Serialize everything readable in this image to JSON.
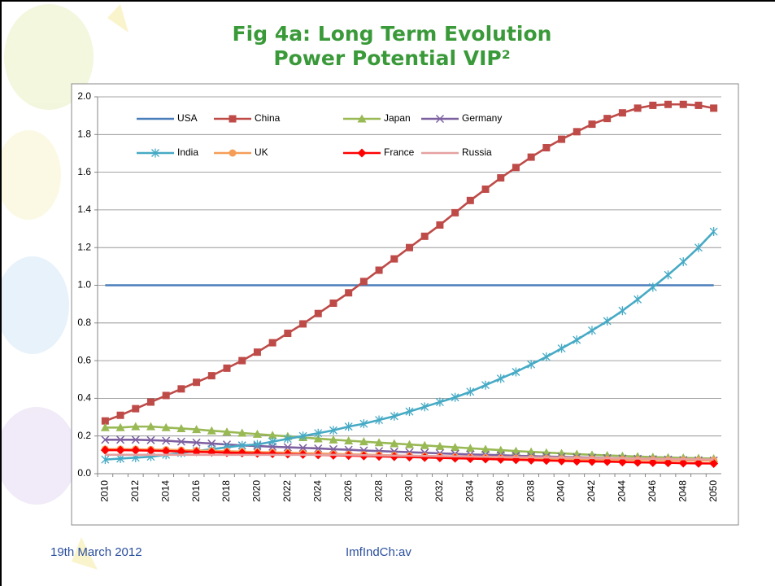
{
  "chart_data": {
    "type": "line",
    "title": [
      "Fig 4a: Long Term Evolution",
      "Power Potential VIP²"
    ],
    "categories": [
      "2010",
      null,
      "2012",
      null,
      "2014",
      null,
      "2016",
      null,
      "2018",
      null,
      "2020",
      null,
      "2022",
      null,
      "2024",
      null,
      "2026",
      null,
      "2028",
      null,
      "2030",
      null,
      "2032",
      null,
      "2034",
      null,
      "2036",
      null,
      "2038",
      null,
      "2040",
      null,
      "2042",
      null,
      "2044",
      null,
      "2046",
      null,
      "2048",
      null,
      "2050"
    ],
    "ylim": [
      0,
      2
    ],
    "yticks": [
      {
        "value": 0,
        "label": "0.0"
      },
      0.2,
      0.4,
      0.6,
      0.8,
      {
        "value": 1,
        "label": "1.0"
      },
      1.2,
      1.4,
      1.6,
      1.8,
      {
        "value": 2,
        "label": "2.0"
      }
    ],
    "grid": true,
    "legend": "top",
    "series": [
      {
        "name": "USA",
        "color": "#4a7ebb",
        "marker": "none",
        "values": [
          1,
          1,
          1,
          1,
          1,
          1,
          1,
          1,
          1,
          1,
          1,
          1,
          1,
          1,
          1,
          1,
          1,
          1,
          1,
          1,
          1,
          1,
          1,
          1,
          1,
          1,
          1,
          1,
          1,
          1,
          1,
          1,
          1,
          1,
          1,
          1,
          1,
          1,
          1,
          1,
          1
        ]
      },
      {
        "name": "China",
        "color": "#be4b48",
        "marker": "square",
        "values": [
          0.28,
          0.31,
          0.345,
          0.38,
          0.415,
          0.45,
          0.485,
          0.52,
          0.56,
          0.6,
          0.645,
          0.695,
          0.745,
          0.795,
          0.85,
          0.905,
          0.96,
          1.02,
          1.08,
          1.14,
          1.2,
          1.26,
          1.32,
          1.385,
          1.45,
          1.51,
          1.57,
          1.625,
          1.68,
          1.73,
          1.775,
          1.815,
          1.855,
          1.885,
          1.915,
          1.94,
          1.955,
          1.96,
          1.96,
          1.955,
          1.94
        ]
      },
      {
        "name": "Japan",
        "color": "#98b954",
        "marker": "triangle",
        "values": [
          0.245,
          0.245,
          0.25,
          0.25,
          0.245,
          0.24,
          0.235,
          0.228,
          0.222,
          0.216,
          0.21,
          0.204,
          0.198,
          0.192,
          0.186,
          0.18,
          0.175,
          0.17,
          0.165,
          0.16,
          0.155,
          0.15,
          0.145,
          0.14,
          0.135,
          0.13,
          0.125,
          0.12,
          0.116,
          0.112,
          0.108,
          0.104,
          0.1,
          0.097,
          0.094,
          0.091,
          0.088,
          0.086,
          0.084,
          0.082,
          0.08
        ]
      },
      {
        "name": "Germany",
        "color": "#7d60a0",
        "marker": "x",
        "values": [
          0.18,
          0.18,
          0.18,
          0.178,
          0.175,
          0.17,
          0.165,
          0.16,
          0.155,
          0.15,
          0.147,
          0.143,
          0.14,
          0.137,
          0.134,
          0.13,
          0.127,
          0.123,
          0.12,
          0.117,
          0.114,
          0.111,
          0.108,
          0.105,
          0.102,
          0.1,
          0.098,
          0.095,
          0.093,
          0.091,
          0.089,
          0.087,
          0.085,
          0.083,
          0.081,
          0.079,
          0.077,
          0.075,
          0.073,
          0.071,
          0.07
        ]
      },
      {
        "name": "India",
        "color": "#46aac5",
        "marker": "star",
        "values": [
          0.075,
          0.08,
          0.085,
          0.09,
          0.1,
          0.11,
          0.12,
          0.13,
          0.14,
          0.15,
          0.155,
          0.17,
          0.185,
          0.2,
          0.215,
          0.23,
          0.25,
          0.265,
          0.285,
          0.305,
          0.33,
          0.355,
          0.38,
          0.405,
          0.435,
          0.47,
          0.505,
          0.54,
          0.58,
          0.62,
          0.665,
          0.71,
          0.76,
          0.81,
          0.865,
          0.925,
          0.99,
          1.055,
          1.125,
          1.2,
          1.285
        ]
      },
      {
        "name": "UK",
        "color": "#f59d56",
        "marker": "circle",
        "values": [
          0.13,
          0.13,
          0.13,
          0.128,
          0.127,
          0.125,
          0.123,
          0.121,
          0.119,
          0.117,
          0.115,
          0.113,
          0.111,
          0.109,
          0.107,
          0.105,
          0.103,
          0.101,
          0.099,
          0.097,
          0.095,
          0.093,
          0.091,
          0.089,
          0.087,
          0.085,
          0.083,
          0.082,
          0.081,
          0.08,
          0.079,
          0.078,
          0.077,
          0.076,
          0.075,
          0.074,
          0.073,
          0.072,
          0.071,
          0.07,
          0.07
        ]
      },
      {
        "name": "France",
        "color": "#ff0000",
        "marker": "diamond",
        "values": [
          0.125,
          0.125,
          0.124,
          0.122,
          0.12,
          0.118,
          0.116,
          0.114,
          0.112,
          0.11,
          0.108,
          0.106,
          0.104,
          0.102,
          0.1,
          0.098,
          0.096,
          0.094,
          0.092,
          0.09,
          0.088,
          0.086,
          0.084,
          0.082,
          0.08,
          0.078,
          0.076,
          0.074,
          0.072,
          0.07,
          0.068,
          0.066,
          0.065,
          0.064,
          0.062,
          0.06,
          0.059,
          0.058,
          0.056,
          0.055,
          0.054
        ]
      },
      {
        "name": "Russia",
        "color": "#e6a0a0",
        "marker": "none",
        "values": [
          0.1,
          0.1,
          0.1,
          0.1,
          0.1,
          0.1,
          0.1,
          0.1,
          0.1,
          0.1,
          0.1,
          0.1,
          0.1,
          0.1,
          0.1,
          0.1,
          0.099,
          0.098,
          0.097,
          0.096,
          0.095,
          0.094,
          0.093,
          0.092,
          0.091,
          0.09,
          0.089,
          0.088,
          0.087,
          0.086,
          0.085,
          0.084,
          0.083,
          0.082,
          0.081,
          0.08,
          0.079,
          0.078,
          0.077,
          0.076,
          0.075
        ]
      }
    ]
  },
  "footer": {
    "date": "19th March 2012",
    "ref": "ImfIndCh:av"
  }
}
